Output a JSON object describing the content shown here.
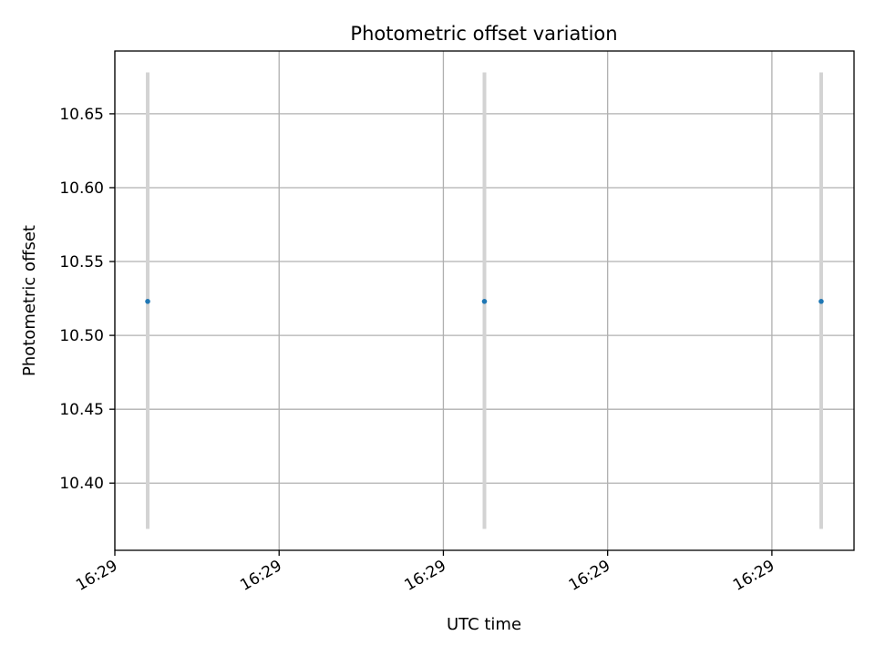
{
  "chart_data": {
    "type": "scatter",
    "title": "Photometric offset variation",
    "xlabel": "UTC time",
    "ylabel": "Photometric offset",
    "xlim": [
      0,
      4.5
    ],
    "ylim": [
      10.3545,
      10.6925
    ],
    "x_ticks": [
      {
        "value": 0,
        "label": "16:29"
      },
      {
        "value": 1,
        "label": "16:29"
      },
      {
        "value": 2,
        "label": "16:29"
      },
      {
        "value": 3,
        "label": "16:29"
      },
      {
        "value": 4,
        "label": "16:29"
      }
    ],
    "y_ticks": [
      {
        "value": 10.4,
        "label": "10.40"
      },
      {
        "value": 10.45,
        "label": "10.45"
      },
      {
        "value": 10.5,
        "label": "10.50"
      },
      {
        "value": 10.55,
        "label": "10.55"
      },
      {
        "value": 10.6,
        "label": "10.60"
      },
      {
        "value": 10.65,
        "label": "10.65"
      }
    ],
    "grid": true,
    "series": [
      {
        "points": [
          {
            "x": 0.2,
            "y": 10.523,
            "yerr_low": 10.369,
            "yerr_high": 10.678
          },
          {
            "x": 2.25,
            "y": 10.523,
            "yerr_low": 10.369,
            "yerr_high": 10.678
          },
          {
            "x": 4.3,
            "y": 10.523,
            "yerr_low": 10.369,
            "yerr_high": 10.678
          }
        ]
      }
    ],
    "colors": {
      "point": "#1f77b4",
      "errorbar": "#d3d3d3",
      "grid": "#b0b0b0",
      "axes": "#000000"
    }
  }
}
